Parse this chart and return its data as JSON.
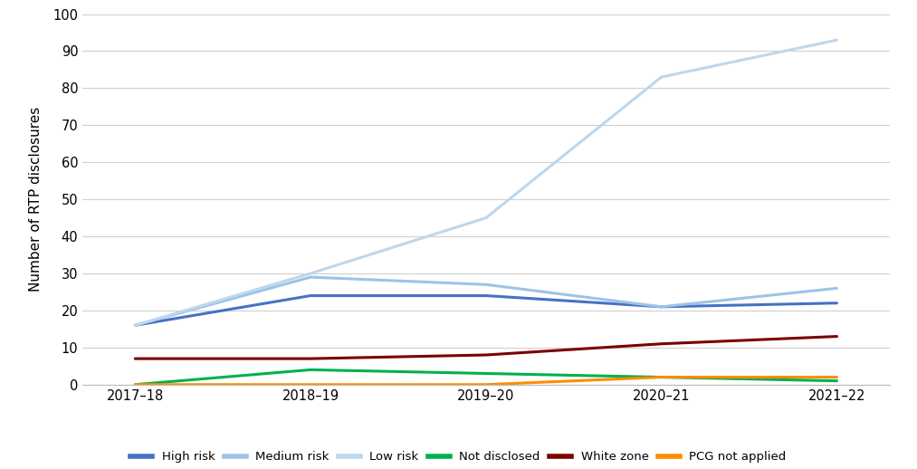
{
  "x_labels": [
    "2017–18",
    "2018–19",
    "2019–20",
    "2020–21",
    "2021–22"
  ],
  "series": [
    {
      "name": "High risk",
      "values": [
        16,
        24,
        24,
        21,
        22
      ],
      "color": "#4472C4",
      "linewidth": 2.2
    },
    {
      "name": "Medium risk",
      "values": [
        16,
        29,
        27,
        21,
        26
      ],
      "color": "#9DC3E6",
      "linewidth": 2.2
    },
    {
      "name": "Low risk",
      "values": [
        16,
        30,
        45,
        83,
        93
      ],
      "color": "#BDD7EE",
      "linewidth": 2.2
    },
    {
      "name": "Not disclosed",
      "values": [
        0,
        4,
        3,
        2,
        1
      ],
      "color": "#00B050",
      "linewidth": 2.2
    },
    {
      "name": "White zone",
      "values": [
        7,
        7,
        8,
        11,
        13
      ],
      "color": "#7B0000",
      "linewidth": 2.2
    },
    {
      "name": "PCG not applied",
      "values": [
        0,
        0,
        0,
        2,
        2
      ],
      "color": "#FF8C00",
      "linewidth": 2.2
    }
  ],
  "ylabel": "Number of RTP disclosures",
  "ylim": [
    0,
    100
  ],
  "yticks": [
    0,
    10,
    20,
    30,
    40,
    50,
    60,
    70,
    80,
    90,
    100
  ],
  "grid_color": "#D0D0D0",
  "background_color": "#FFFFFF",
  "legend_ncol": 6,
  "legend_fontsize": 9.5,
  "ylabel_fontsize": 11,
  "tick_fontsize": 10.5
}
